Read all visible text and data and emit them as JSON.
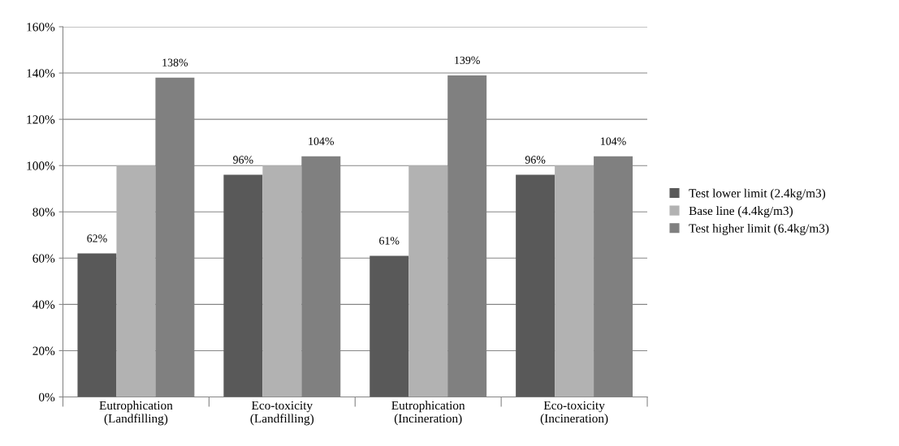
{
  "chart_data": {
    "type": "bar",
    "categories": [
      "Eutrophication\n(Landfilling)",
      "Eco-toxicity\n(Landfilling)",
      "Eutrophication\n(Incineration)",
      "Eco-toxicity\n(Incineration)"
    ],
    "series": [
      {
        "name": "Test lower limit (2.4kg/m3)",
        "color": "#595959",
        "values": [
          62,
          96,
          61,
          96
        ],
        "value_labels": [
          "62%",
          "96%",
          "61%",
          "96%"
        ]
      },
      {
        "name": "Base line (4.4kg/m3)",
        "color": "#b2b2b2",
        "values": [
          100,
          100,
          100,
          100
        ]
      },
      {
        "name": "Test higher limit (6.4kg/m3)",
        "color": "#808080",
        "values": [
          138,
          104,
          139,
          104
        ],
        "value_labels": [
          "138%",
          "104%",
          "139%",
          "104%"
        ]
      }
    ],
    "ylim": [
      0,
      160
    ],
    "yticks": [
      {
        "value": 0,
        "label": "0%"
      },
      {
        "value": 20,
        "label": "20%"
      },
      {
        "value": 40,
        "label": "40%"
      },
      {
        "value": 60,
        "label": "60%"
      },
      {
        "value": 80,
        "label": "80%"
      },
      {
        "value": 100,
        "label": "100%"
      },
      {
        "value": 120,
        "label": "120%"
      },
      {
        "value": 140,
        "label": "140%"
      },
      {
        "value": 160,
        "label": "160%"
      }
    ],
    "grid": "y",
    "legend": "right"
  }
}
